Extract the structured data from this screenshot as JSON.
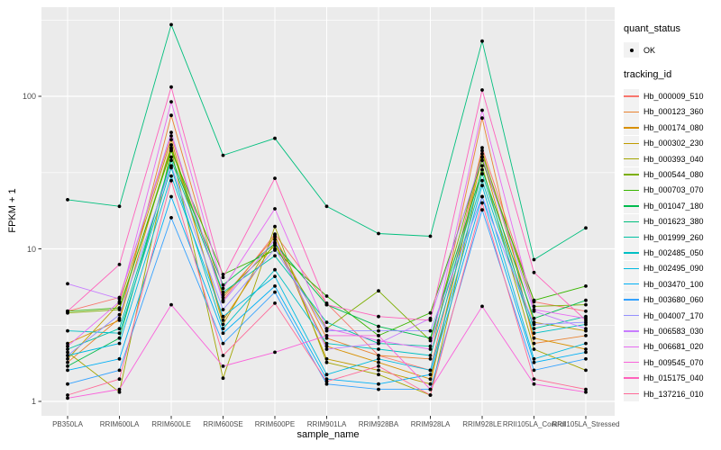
{
  "figure": {
    "background": "#FFFFFF",
    "panel_background": "#EBEBEB",
    "grid_color": "#FFFFFF",
    "axis_text_color": "#4D4D4D",
    "point_color": "#000000"
  },
  "axes": {
    "x_title": "sample_name",
    "y_title": "FPKM + 1",
    "y_tick_labels": [
      "1",
      "10",
      "100"
    ]
  },
  "legend": {
    "quant_title": "quant_status",
    "quant_item_label": "OK",
    "tracking_title": "tracking_id"
  },
  "chart_data": {
    "type": "line",
    "title": "",
    "xlabel": "sample_name",
    "ylabel": "FPKM + 1",
    "y_scale": "log10",
    "y_ticks": [
      1,
      10,
      100
    ],
    "y_minor_ticks": [
      3.162,
      31.62,
      316.2
    ],
    "ylim": [
      0.95,
      380
    ],
    "grid": true,
    "legend_position": "right",
    "marker": "black-point",
    "categories": [
      "PB350LA",
      "RRIM600LA",
      "RRIM600LE",
      "RRIM600SE",
      "RRIM600PE",
      "RRIM901LA",
      "RRIM928BA",
      "RRIM928LA",
      "RRIM928LE",
      "RRII105LA_Control",
      "RRII105LA_Stressed"
    ],
    "series": [
      {
        "name": "Hb_000009_510",
        "color": "#F8766D",
        "values": [
          3.9,
          4.8,
          55,
          4.6,
          12.5,
          4.4,
          2.0,
          1.6,
          46,
          4.5,
          3.9
        ]
      },
      {
        "name": "Hb_000123_360",
        "color": "#EA8331",
        "values": [
          1.8,
          3.5,
          75,
          4.8,
          12.0,
          2.6,
          2.0,
          1.9,
          72,
          2.4,
          2.7
        ]
      },
      {
        "name": "Hb_000174_080",
        "color": "#D89000",
        "values": [
          2.4,
          3.4,
          48,
          3.4,
          11.0,
          2.3,
          1.8,
          1.4,
          40,
          2.6,
          2.2
        ]
      },
      {
        "name": "Hb_000302_230",
        "color": "#C09B00",
        "values": [
          1.9,
          4.4,
          52,
          3.2,
          12.3,
          1.9,
          1.6,
          1.3,
          44,
          3.3,
          2.9
        ]
      },
      {
        "name": "Hb_000393_040",
        "color": "#A3A500",
        "values": [
          2.1,
          1.15,
          45,
          1.42,
          14.0,
          1.8,
          1.5,
          1.1,
          35,
          2.2,
          1.6
        ]
      },
      {
        "name": "Hb_000544_080",
        "color": "#7CAE00",
        "values": [
          3.8,
          4.0,
          46,
          5.0,
          10.5,
          3.0,
          5.3,
          2.5,
          42,
          4.2,
          4.3
        ]
      },
      {
        "name": "Hb_000703_070",
        "color": "#39B600",
        "values": [
          3.9,
          4.1,
          44,
          6.8,
          9.8,
          4.9,
          2.7,
          3.8,
          38,
          4.6,
          5.7
        ]
      },
      {
        "name": "Hb_001047_180",
        "color": "#00BB4E",
        "values": [
          1.7,
          2.6,
          40,
          5.8,
          10.8,
          4.3,
          3.1,
          2.6,
          33,
          3.5,
          4.6
        ]
      },
      {
        "name": "Hb_001623_380",
        "color": "#00BF7D",
        "values": [
          21,
          19,
          295,
          41,
          53,
          19,
          12.6,
          12.1,
          230,
          8.5,
          13.7
        ]
      },
      {
        "name": "Hb_001999_260",
        "color": "#00C1A3",
        "values": [
          2.2,
          3.0,
          38,
          5.2,
          9.0,
          3.3,
          2.4,
          2.3,
          31,
          3.0,
          3.6
        ]
      },
      {
        "name": "Hb_002485_050",
        "color": "#00BFC4",
        "values": [
          2.9,
          2.8,
          34,
          3.0,
          7.3,
          2.4,
          2.2,
          2.0,
          28,
          2.8,
          3.2
        ]
      },
      {
        "name": "Hb_002495_090",
        "color": "#00BAE0",
        "values": [
          2.0,
          2.4,
          30,
          3.6,
          6.6,
          1.5,
          1.9,
          1.6,
          26,
          1.9,
          2.4
        ]
      },
      {
        "name": "Hb_003470_100",
        "color": "#00B0F6",
        "values": [
          1.6,
          1.9,
          22,
          2.8,
          5.7,
          1.4,
          1.3,
          1.5,
          22,
          1.8,
          2.1
        ]
      },
      {
        "name": "Hb_003680_060",
        "color": "#35A2FF",
        "values": [
          1.3,
          1.6,
          16,
          2.4,
          5.2,
          1.3,
          1.2,
          1.2,
          18,
          1.6,
          1.9
        ]
      },
      {
        "name": "Hb_004007_170",
        "color": "#9590FF",
        "values": [
          2.0,
          3.7,
          35,
          4.0,
          10.0,
          2.9,
          2.9,
          2.9,
          22,
          3.2,
          3.3
        ]
      },
      {
        "name": "Hb_006583_030",
        "color": "#C77CFF",
        "values": [
          5.9,
          4.7,
          58,
          4.5,
          11.5,
          2.2,
          2.4,
          3.5,
          40,
          3.9,
          3.0
        ]
      },
      {
        "name": "Hb_006681_020",
        "color": "#E76BF3",
        "values": [
          2.3,
          4.5,
          92,
          5.5,
          18.3,
          3.0,
          2.5,
          2.2,
          81,
          4.0,
          3.5
        ]
      },
      {
        "name": "Hb_009545_070",
        "color": "#FA62DB",
        "values": [
          1.05,
          1.2,
          4.3,
          1.7,
          2.1,
          2.7,
          2.7,
          1.2,
          4.2,
          1.3,
          1.15
        ]
      },
      {
        "name": "Hb_015175_040",
        "color": "#FF62BC",
        "values": [
          3.9,
          7.9,
          115,
          6.5,
          29,
          4.3,
          3.6,
          3.4,
          110,
          7.0,
          3.4
        ]
      },
      {
        "name": "Hb_137216_010",
        "color": "#FF6A98",
        "values": [
          1.1,
          1.4,
          28,
          2.0,
          4.4,
          1.35,
          1.7,
          1.1,
          20,
          1.4,
          1.2
        ]
      }
    ]
  }
}
